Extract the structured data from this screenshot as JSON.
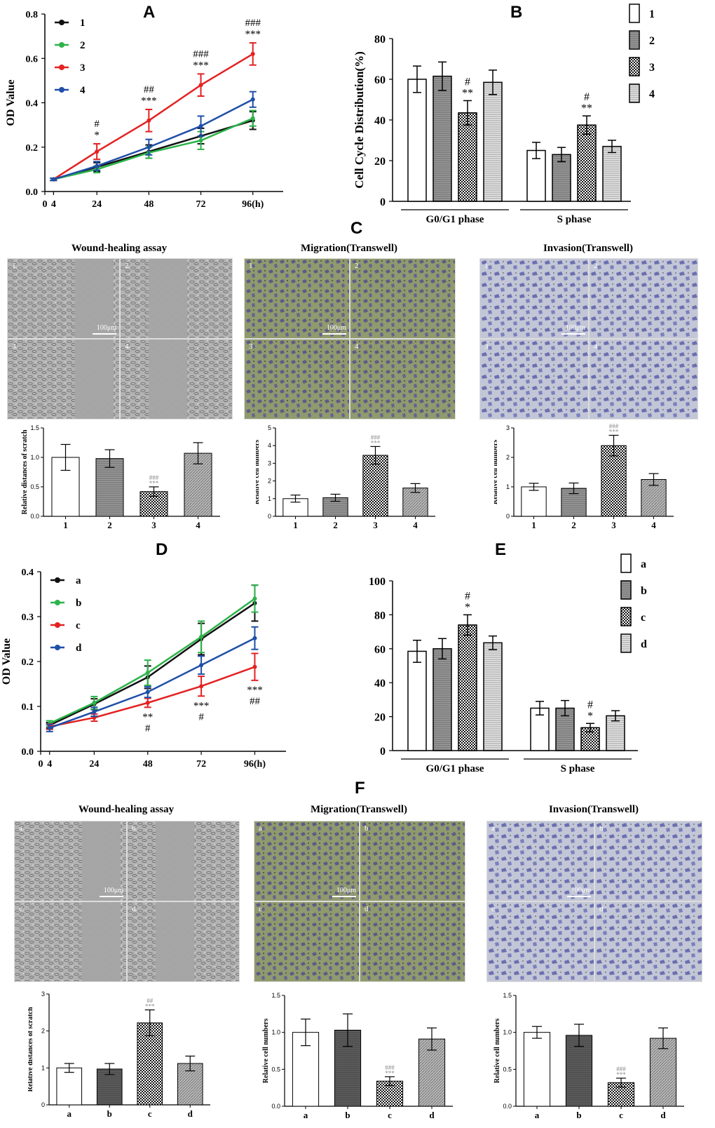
{
  "panel_letters": {
    "A": "A",
    "B": "B",
    "C": "C",
    "D": "D",
    "E": "E",
    "F": "F"
  },
  "image_titles": {
    "c_wound": "Wound-healing assay",
    "c_migration": "Migration(Transwell)",
    "c_invasion": "Invasion(Transwell)",
    "f_wound": "Wound-healing assay",
    "f_migration": "Migration(Transwell)",
    "f_invasion": "Invasion(Transwell)"
  },
  "scale_bar": "100μm",
  "image_tiles": {
    "c_labels": [
      "1",
      "2",
      "3",
      "4"
    ],
    "f_labels": [
      "a",
      "b",
      "c",
      "d"
    ]
  },
  "colors": {
    "black": "#111111",
    "green": "#2db34a",
    "red": "#e32222",
    "blue": "#1f4fa8",
    "wound_gray": "#a8a8a8",
    "migration_green": "#8f9a6a",
    "invasion_blue": "#b7bccf"
  },
  "chart_data": [
    {
      "id": "A",
      "type": "line",
      "ylabel": "OD Value",
      "x_ticks": [
        "0",
        "4",
        "24",
        "48",
        "72",
        "96(h)"
      ],
      "x": [
        4,
        24,
        48,
        72,
        96
      ],
      "xlim": [
        0,
        110
      ],
      "ylim": [
        0,
        0.8
      ],
      "y_ticks": [
        "0.0",
        "0.2",
        "0.4",
        "0.6",
        "0.8"
      ],
      "series": [
        {
          "name": "1",
          "color": "black",
          "values": [
            0.055,
            0.11,
            0.18,
            0.25,
            0.32
          ],
          "err": [
            0.005,
            0.02,
            0.03,
            0.035,
            0.04
          ]
        },
        {
          "name": "2",
          "color": "green",
          "values": [
            0.055,
            0.1,
            0.175,
            0.23,
            0.33
          ],
          "err": [
            0.005,
            0.015,
            0.025,
            0.04,
            0.035
          ]
        },
        {
          "name": "3",
          "color": "red",
          "values": [
            0.055,
            0.18,
            0.32,
            0.48,
            0.62
          ],
          "err": [
            0.005,
            0.035,
            0.05,
            0.05,
            0.05
          ]
        },
        {
          "name": "4",
          "color": "blue",
          "values": [
            0.055,
            0.115,
            0.2,
            0.295,
            0.415
          ],
          "err": [
            0.005,
            0.02,
            0.035,
            0.045,
            0.035
          ]
        }
      ],
      "annotations": [
        {
          "x": 24,
          "series": 2,
          "lines": [
            "#",
            "*"
          ]
        },
        {
          "x": 48,
          "series": 2,
          "lines": [
            "##",
            "***"
          ]
        },
        {
          "x": 72,
          "series": 2,
          "lines": [
            "###",
            "***"
          ]
        },
        {
          "x": 96,
          "series": 2,
          "lines": [
            "###",
            "***"
          ]
        }
      ]
    },
    {
      "id": "B",
      "type": "bar",
      "ylabel": "Cell Cycle Distribution(%)",
      "categories": [
        "G0/G1 phase",
        "S phase"
      ],
      "ylim": [
        0,
        80
      ],
      "y_ticks": [
        "0",
        "20",
        "40",
        "60",
        "80"
      ],
      "legend": [
        "1",
        "2",
        "3",
        "4"
      ],
      "series": [
        {
          "name": "1",
          "values": [
            60,
            25
          ],
          "err": [
            6.5,
            4
          ]
        },
        {
          "name": "2",
          "values": [
            61.5,
            23
          ],
          "err": [
            7,
            3.5
          ]
        },
        {
          "name": "3",
          "values": [
            43.5,
            37.5
          ],
          "err": [
            6,
            4.5
          ]
        },
        {
          "name": "4",
          "values": [
            58.5,
            27
          ],
          "err": [
            6,
            3
          ]
        }
      ],
      "annotations": [
        {
          "category": 0,
          "series": 2,
          "lines": [
            "#",
            "**"
          ]
        },
        {
          "category": 1,
          "series": 2,
          "lines": [
            "#",
            "**"
          ]
        }
      ]
    },
    {
      "id": "C-wound",
      "type": "bar",
      "ylabel": "Relative distances of scratch",
      "categories": [
        "1",
        "2",
        "3",
        "4"
      ],
      "ylim": [
        0,
        1.5
      ],
      "y_ticks": [
        "0.0",
        "0.5",
        "1.0",
        "1.5"
      ],
      "values": [
        1.0,
        0.98,
        0.42,
        1.07
      ],
      "err": [
        0.22,
        0.15,
        0.08,
        0.18
      ],
      "annotations": [
        {
          "index": 2,
          "lines": [
            "###",
            "***"
          ]
        }
      ]
    },
    {
      "id": "C-migration",
      "type": "bar",
      "ylabel": "Relative cell numbers",
      "categories": [
        "1",
        "2",
        "3",
        "4"
      ],
      "ylim": [
        0,
        5
      ],
      "y_ticks": [
        "0",
        "1",
        "2",
        "3",
        "4",
        "5"
      ],
      "values": [
        1.0,
        1.05,
        3.45,
        1.6
      ],
      "err": [
        0.2,
        0.2,
        0.5,
        0.25
      ],
      "annotations": [
        {
          "index": 2,
          "lines": [
            "###",
            "***"
          ]
        }
      ]
    },
    {
      "id": "C-invasion",
      "type": "bar",
      "ylabel": "Relative cell numbers",
      "categories": [
        "1",
        "2",
        "3",
        "4"
      ],
      "ylim": [
        0,
        3
      ],
      "y_ticks": [
        "0",
        "1",
        "2",
        "3"
      ],
      "values": [
        1.0,
        0.95,
        2.4,
        1.25
      ],
      "err": [
        0.12,
        0.18,
        0.35,
        0.2
      ],
      "annotations": [
        {
          "index": 2,
          "lines": [
            "###",
            "***"
          ]
        }
      ]
    },
    {
      "id": "D",
      "type": "line",
      "ylabel": "OD Value",
      "x_ticks": [
        "0",
        "4",
        "24",
        "48",
        "72",
        "96(h)"
      ],
      "x": [
        4,
        24,
        48,
        72,
        96
      ],
      "xlim": [
        0,
        110
      ],
      "ylim": [
        0,
        0.4
      ],
      "y_ticks": [
        "0.0",
        "0.1",
        "0.2",
        "0.3",
        "0.4"
      ],
      "series": [
        {
          "name": "a",
          "color": "black",
          "values": [
            0.058,
            0.105,
            0.165,
            0.25,
            0.33
          ],
          "err": [
            0.006,
            0.012,
            0.025,
            0.035,
            0.04
          ]
        },
        {
          "name": "b",
          "color": "green",
          "values": [
            0.062,
            0.108,
            0.175,
            0.255,
            0.34
          ],
          "err": [
            0.006,
            0.014,
            0.028,
            0.035,
            0.03
          ]
        },
        {
          "name": "c",
          "color": "red",
          "values": [
            0.055,
            0.075,
            0.108,
            0.145,
            0.188
          ],
          "err": [
            0.006,
            0.008,
            0.01,
            0.022,
            0.03
          ]
        },
        {
          "name": "d",
          "color": "blue",
          "values": [
            0.052,
            0.088,
            0.132,
            0.192,
            0.252
          ],
          "err": [
            0.008,
            0.01,
            0.012,
            0.02,
            0.025
          ]
        }
      ],
      "annotations": [
        {
          "x": 48,
          "series": 2,
          "lines": [
            "**",
            "#"
          ]
        },
        {
          "x": 72,
          "series": 2,
          "lines": [
            "***",
            "#"
          ]
        },
        {
          "x": 96,
          "series": 2,
          "lines": [
            "***",
            "##"
          ]
        }
      ]
    },
    {
      "id": "E",
      "type": "bar",
      "ylabel": "",
      "categories": [
        "G0/G1 phase",
        "S phase"
      ],
      "ylim": [
        0,
        100
      ],
      "y_ticks": [
        "0",
        "20",
        "40",
        "60",
        "80",
        "100"
      ],
      "legend": [
        "a",
        "b",
        "c",
        "d"
      ],
      "series": [
        {
          "name": "a",
          "values": [
            58.5,
            25
          ],
          "err": [
            6.5,
            4
          ]
        },
        {
          "name": "b",
          "values": [
            60,
            25
          ],
          "err": [
            6,
            4.5
          ]
        },
        {
          "name": "c",
          "values": [
            74,
            13.5
          ],
          "err": [
            6,
            2.5
          ]
        },
        {
          "name": "d",
          "values": [
            63.5,
            20.5
          ],
          "err": [
            4,
            3
          ]
        }
      ],
      "annotations": [
        {
          "category": 0,
          "series": 2,
          "lines": [
            "#",
            "*"
          ]
        },
        {
          "category": 1,
          "series": 2,
          "lines": [
            "#",
            "*"
          ]
        }
      ]
    },
    {
      "id": "F-wound",
      "type": "bar",
      "ylabel": "Relative distances of scratch",
      "categories": [
        "a",
        "b",
        "c",
        "d"
      ],
      "ylim": [
        0,
        3
      ],
      "y_ticks": [
        "0",
        "1",
        "2",
        "3"
      ],
      "values": [
        1.0,
        0.97,
        2.22,
        1.12
      ],
      "err": [
        0.12,
        0.15,
        0.35,
        0.2
      ],
      "annotations": [
        {
          "index": 2,
          "lines": [
            "##",
            "***"
          ]
        }
      ]
    },
    {
      "id": "F-migration",
      "type": "bar",
      "ylabel": "Relative cell numbers",
      "categories": [
        "a",
        "b",
        "c",
        "d"
      ],
      "ylim": [
        0,
        1.5
      ],
      "y_ticks": [
        "0.0",
        "0.5",
        "1.0",
        "1.5"
      ],
      "values": [
        1.0,
        1.03,
        0.34,
        0.91
      ],
      "err": [
        0.18,
        0.22,
        0.06,
        0.15
      ],
      "annotations": [
        {
          "index": 2,
          "lines": [
            "###",
            "***"
          ]
        }
      ]
    },
    {
      "id": "F-invasion",
      "type": "bar",
      "ylabel": "Relative cell numbers",
      "categories": [
        "a",
        "b",
        "c",
        "d"
      ],
      "ylim": [
        0,
        1.5
      ],
      "y_ticks": [
        "0.0",
        "0.5",
        "1.0",
        "1.5"
      ],
      "values": [
        1.0,
        0.96,
        0.32,
        0.92
      ],
      "err": [
        0.08,
        0.15,
        0.06,
        0.14
      ],
      "annotations": [
        {
          "index": 2,
          "lines": [
            "###",
            "***"
          ]
        }
      ]
    }
  ]
}
